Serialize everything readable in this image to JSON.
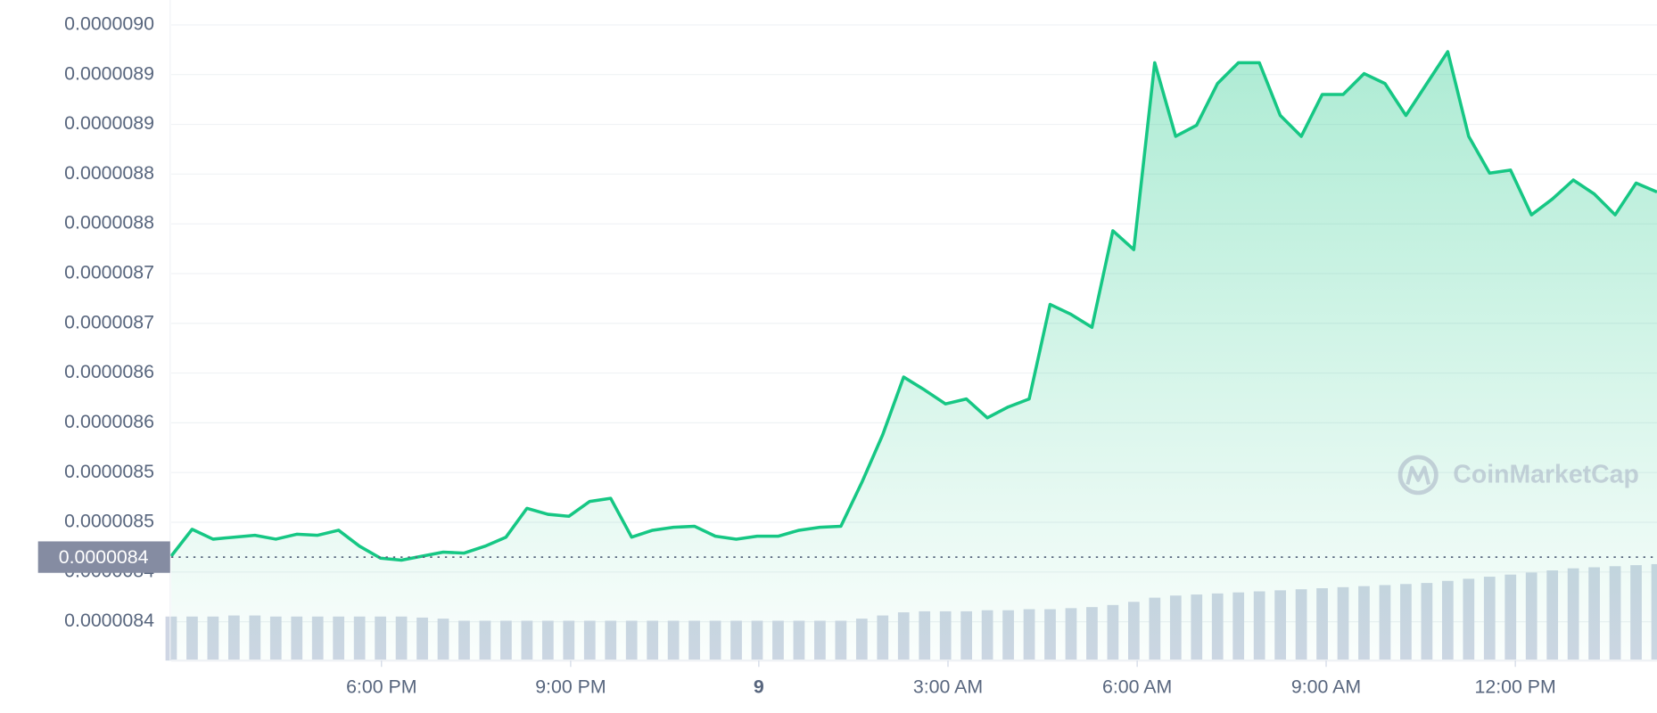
{
  "chart_data": {
    "type": "area",
    "series": [
      {
        "color": "#16c784",
        "values": [
          8.436e-06,
          8.463e-06,
          8.453e-06,
          8.455e-06,
          8.457e-06,
          8.453e-06,
          8.458e-06,
          8.457e-06,
          8.462e-06,
          8.446e-06,
          8.434e-06,
          8.432e-06,
          8.436e-06,
          8.44e-06,
          8.439e-06,
          8.446e-06,
          8.455e-06,
          8.484e-06,
          8.478e-06,
          8.476e-06,
          8.491e-06,
          8.494e-06,
          8.455e-06,
          8.462e-06,
          8.465e-06,
          8.466e-06,
          8.456e-06,
          8.453e-06,
          8.456e-06,
          8.456e-06,
          8.462e-06,
          8.465e-06,
          8.466e-06,
          8.51e-06,
          8.558e-06,
          8.616e-06,
          8.603e-06,
          8.589e-06,
          8.594e-06,
          8.575e-06,
          8.586e-06,
          8.594e-06,
          8.689e-06,
          8.679e-06,
          8.666e-06,
          8.763e-06,
          8.744e-06,
          8.932e-06,
          8.858e-06,
          8.869e-06,
          8.911e-06,
          8.932e-06,
          8.932e-06,
          8.879e-06,
          8.858e-06,
          8.9e-06,
          8.9e-06,
          8.921e-06,
          8.911e-06,
          8.879e-06,
          8.911e-06,
          8.943e-06,
          8.858e-06,
          8.821e-06,
          8.824e-06,
          8.779e-06,
          8.795e-06,
          8.814e-06,
          8.8e-06,
          8.779e-06,
          8.811e-06,
          8.802e-06
        ]
      }
    ],
    "volume": {
      "color": "#cfd6e4",
      "axis": "y2",
      "values": [
        42,
        42,
        42,
        43,
        43,
        42,
        42,
        42,
        42,
        42,
        42,
        42,
        41,
        40,
        38,
        38,
        38,
        38,
        38,
        38,
        38,
        38,
        38,
        38,
        38,
        38,
        38,
        38,
        38,
        38,
        38,
        38,
        38,
        40,
        43,
        46,
        47,
        47,
        47,
        48,
        48,
        49,
        49,
        50,
        51,
        53,
        56,
        60,
        62,
        63,
        64,
        65,
        66,
        67,
        68,
        69,
        70,
        71,
        72,
        73,
        74,
        76,
        78,
        80,
        82,
        84,
        86,
        88,
        89,
        90,
        91,
        92
      ]
    },
    "xlim": [
      0,
      71
    ],
    "xticks": [
      {
        "value": 10.05,
        "label": "6:00 PM"
      },
      {
        "value": 19.09,
        "label": "9:00 PM"
      },
      {
        "value": 28.08,
        "label": "9"
      },
      {
        "value": 37.12,
        "label": "3:00 AM"
      },
      {
        "value": 46.16,
        "label": "6:00 AM"
      },
      {
        "value": 55.19,
        "label": "9:00 AM"
      },
      {
        "value": 64.23,
        "label": "12:00 PM"
      }
    ],
    "ylim": [
      8.331e-06,
      8.995e-06
    ],
    "yticks": [
      {
        "value": 8.97e-06,
        "label": "0.0000090"
      },
      {
        "value": 8.92e-06,
        "label": "0.0000089"
      },
      {
        "value": 8.87e-06,
        "label": "0.0000089"
      },
      {
        "value": 8.82e-06,
        "label": "0.0000088"
      },
      {
        "value": 8.77e-06,
        "label": "0.0000088"
      },
      {
        "value": 8.72e-06,
        "label": "0.0000087"
      },
      {
        "value": 8.67e-06,
        "label": "0.0000087"
      },
      {
        "value": 8.62e-06,
        "label": "0.0000086"
      },
      {
        "value": 8.57e-06,
        "label": "0.0000086"
      },
      {
        "value": 8.52e-06,
        "label": "0.0000085"
      },
      {
        "value": 8.47e-06,
        "label": "0.0000085"
      },
      {
        "value": 8.42e-06,
        "label": "0.0000084"
      },
      {
        "value": 8.37e-06,
        "label": "0.0000084"
      }
    ],
    "y2lim": [
      0,
      100
    ],
    "reference": {
      "value": 8.435e-06,
      "label": "0.0000084"
    },
    "grid": true,
    "watermark": "CoinMarketCap"
  }
}
